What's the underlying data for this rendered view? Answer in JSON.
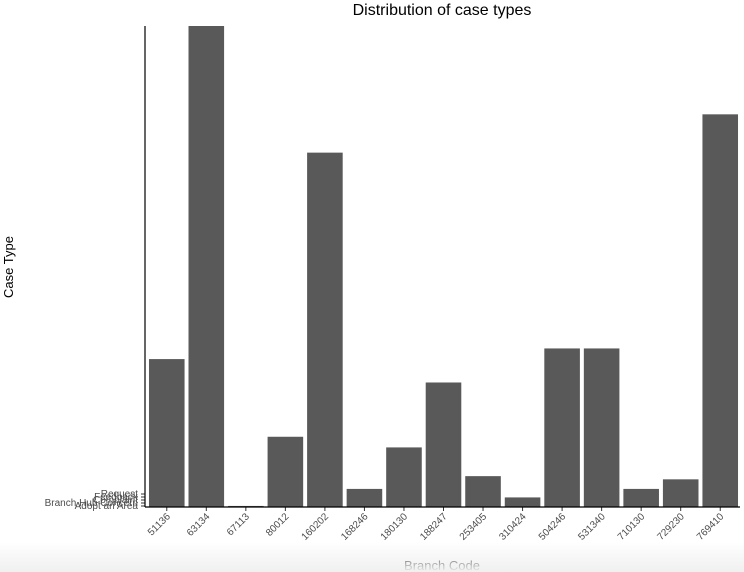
{
  "chart_data": {
    "type": "bar",
    "title": "Distribution of case types",
    "xlabel": "Branch Code",
    "ylabel": "Case Type",
    "categories": [
      "51136",
      "63134",
      "67113",
      "80012",
      "160202",
      "168246",
      "180130",
      "188247",
      "253405",
      "310424",
      "504246",
      "531340",
      "710130",
      "729230",
      "769410"
    ],
    "values": [
      139,
      452,
      1,
      66,
      333,
      17,
      56,
      117,
      29,
      9,
      149,
      149,
      17,
      26,
      369
    ],
    "y_tick_labels": [
      "Adopt an Area",
      "Branch Hub Concern",
      "Complaint",
      "Feedback",
      "Request"
    ],
    "grid": false,
    "bar_color": "#595959",
    "axis_color": "#000000"
  }
}
